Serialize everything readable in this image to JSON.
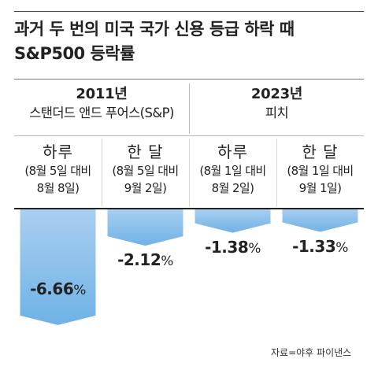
{
  "title_lines": [
    "과거 두 번의 미국 국가 신용 등급 하락 때",
    "S&P500 등락률"
  ],
  "groups": [
    {
      "year": "2011년",
      "agency": "스탠더드 앤드 푸어스(S&P)"
    },
    {
      "year": "2023년",
      "agency": "피치"
    }
  ],
  "columns": [
    {
      "label": "하루",
      "note1": "(8월 5일 대비",
      "note2": "8월 8일)",
      "value_text": "-6.66",
      "unit": "%"
    },
    {
      "label": "한 달",
      "note1": "(8월 5일 대비",
      "note2": "9월 2일)",
      "value_text": "-2.12",
      "unit": "%"
    },
    {
      "label": "하루",
      "note1": "(8월 1일 대비",
      "note2": "8월 2일)",
      "value_text": "-1.38",
      "unit": "%"
    },
    {
      "label": "한 달",
      "note1": "(8월 1일 대비",
      "note2": "9월 1일)",
      "value_text": "-1.33",
      "unit": "%"
    }
  ],
  "source": "자료=야후 파이낸스",
  "colors": {
    "bar_top": "#aacff0",
    "bar_bottom": "#6fb2e6",
    "text": "#222222"
  },
  "chart_data": {
    "type": "bar",
    "categories": [
      "하루",
      "한 달",
      "하루",
      "한 달"
    ],
    "groups": [
      "2011년",
      "2023년"
    ],
    "values": [
      -6.66,
      -2.12,
      -1.38,
      -1.33
    ],
    "unit": "%",
    "orientation": "downward from baseline",
    "ylim": [
      -6.66,
      0
    ],
    "grid": false
  }
}
